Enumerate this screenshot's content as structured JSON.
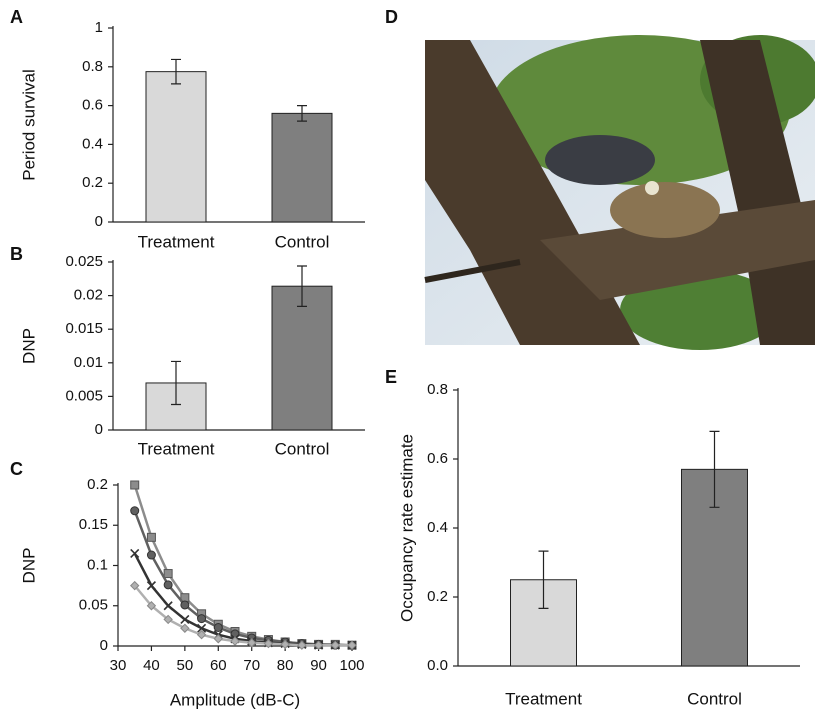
{
  "chart_data": [
    {
      "type": "bar",
      "label": "A",
      "ylabel": "Period survival",
      "categories": [
        "Treatment",
        "Control"
      ],
      "values": [
        0.775,
        0.56
      ],
      "errors": [
        0.063,
        0.04
      ],
      "colors": [
        "#d9d9d9",
        "#7f7f7f"
      ],
      "ylim": [
        0,
        1
      ],
      "yticks": [
        0,
        0.2,
        0.4,
        0.6,
        0.8,
        1
      ]
    },
    {
      "type": "bar",
      "label": "B",
      "ylabel": "DNP",
      "categories": [
        "Treatment",
        "Control"
      ],
      "values": [
        0.007,
        0.0214
      ],
      "errors": [
        0.0032,
        0.003
      ],
      "colors": [
        "#d9d9d9",
        "#7f7f7f"
      ],
      "ylim": [
        0,
        0.025
      ],
      "yticks": [
        0,
        0.005,
        0.01,
        0.015,
        0.02,
        0.025
      ]
    },
    {
      "type": "line",
      "label": "C",
      "ylabel": "DNP",
      "xlabel": "Amplitude (dB-C)",
      "x": [
        35,
        40,
        45,
        50,
        55,
        60,
        65,
        70,
        75,
        80,
        85,
        90,
        95,
        100
      ],
      "series": [
        {
          "color": "#8c8c8c",
          "marker": "square",
          "values": [
            0.2,
            0.135,
            0.09,
            0.06,
            0.04,
            0.027,
            0.018,
            0.012,
            0.008,
            0.005,
            0.003,
            0.002,
            0.002,
            0.001
          ]
        },
        {
          "color": "#606060",
          "marker": "circle",
          "values": [
            0.168,
            0.113,
            0.076,
            0.051,
            0.034,
            0.023,
            0.015,
            0.01,
            0.007,
            0.005,
            0.003,
            0.002,
            0.001,
            0.001
          ]
        },
        {
          "color": "#333333",
          "marker": "cross",
          "values": [
            0.115,
            0.075,
            0.05,
            0.033,
            0.022,
            0.014,
            0.009,
            0.006,
            0.004,
            0.003,
            0.002,
            0.001,
            0.001,
            0.001
          ]
        },
        {
          "color": "#b0b0b0",
          "marker": "diamond",
          "values": [
            0.075,
            0.05,
            0.033,
            0.022,
            0.014,
            0.009,
            0.006,
            0.004,
            0.003,
            0.002,
            0.001,
            0.001,
            0.001,
            0.001
          ]
        }
      ],
      "xlim": [
        30,
        100
      ],
      "xticks": [
        30,
        40,
        50,
        60,
        70,
        80,
        90,
        100
      ],
      "ylim": [
        0,
        0.2
      ],
      "yticks": [
        0,
        0.05,
        0.1,
        0.15,
        0.2
      ]
    },
    {
      "type": "bar",
      "label": "E",
      "ylabel": "Occupancy rate estimate",
      "categories": [
        "Treatment",
        "Control"
      ],
      "values": [
        0.25,
        0.57
      ],
      "errors": [
        0.083,
        0.11
      ],
      "colors": [
        "#d9d9d9",
        "#7f7f7f"
      ],
      "ylim": [
        0,
        0.8
      ],
      "yticks": [
        {
          "value": 0,
          "label": "0.0"
        },
        0.2,
        0.4,
        0.6,
        0.8
      ]
    }
  ],
  "photo": {
    "label": "D"
  }
}
